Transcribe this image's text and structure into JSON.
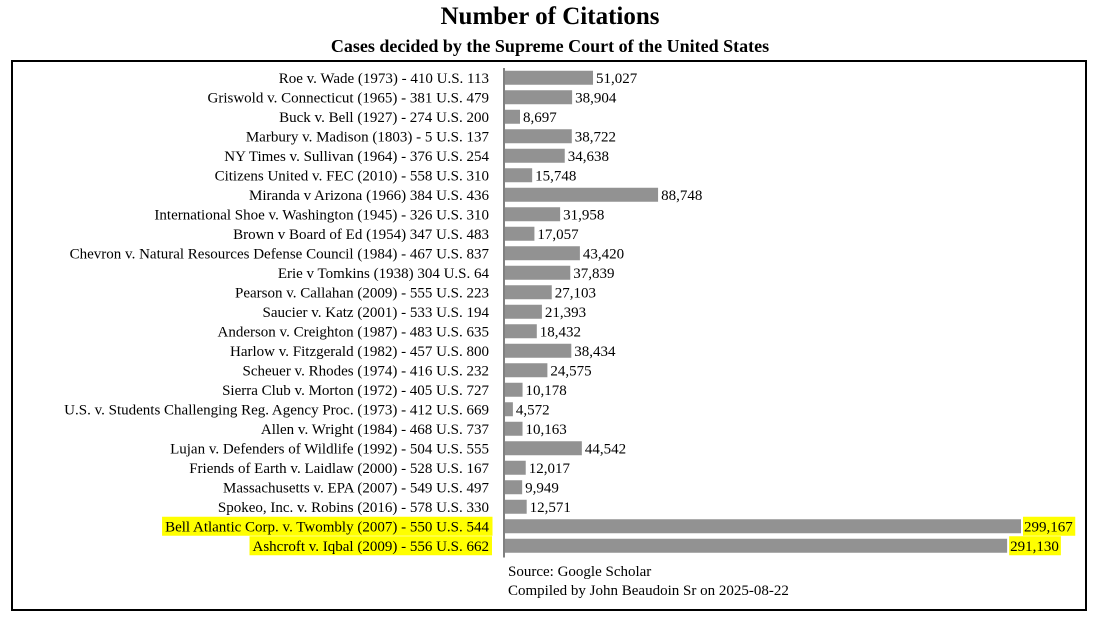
{
  "chart_data": {
    "type": "bar",
    "orientation": "horizontal",
    "title": "Number of Citations",
    "subtitle": "Cases decided by the Supreme Court of the United States",
    "categories": [
      "Roe v. Wade (1973) - 410 U.S. 113",
      "Griswold v. Connecticut (1965) - 381 U.S. 479",
      "Buck v. Bell (1927) - 274 U.S. 200",
      "Marbury v. Madison (1803) - 5 U.S. 137",
      "NY Times v. Sullivan (1964) - 376 U.S. 254",
      "Citizens United v. FEC (2010) - 558 U.S. 310",
      "Miranda v Arizona (1966) 384 U.S. 436",
      "International Shoe v. Washington (1945) - 326 U.S. 310",
      "Brown v Board of Ed (1954) 347 U.S. 483",
      "Chevron v. Natural Resources Defense Council (1984) - 467 U.S. 837",
      "Erie v Tomkins (1938) 304 U.S. 64",
      "Pearson v. Callahan (2009) - 555 U.S. 223",
      "Saucier v. Katz (2001) - 533 U.S. 194",
      "Anderson v. Creighton (1987) - 483 U.S. 635",
      "Harlow v. Fitzgerald (1982) - 457 U.S. 800",
      "Scheuer v. Rhodes (1974) - 416 U.S. 232",
      "Sierra Club v. Morton (1972) - 405 U.S. 727",
      "U.S. v. Students Challenging Reg. Agency Proc. (1973) - 412 U.S. 669",
      "Allen v. Wright (1984) - 468 U.S. 737",
      "Lujan v. Defenders of Wildlife (1992) - 504 U.S. 555",
      "Friends of Earth v. Laidlaw (2000) - 528 U.S. 167",
      "Massachusetts v. EPA (2007) - 549 U.S. 497",
      "Spokeo, Inc. v. Robins (2016) - 578 U.S. 330",
      "Bell Atlantic Corp. v. Twombly (2007) - 550 U.S. 544",
      "Ashcroft v. Iqbal (2009) - 556 U.S. 662"
    ],
    "values": [
      51027,
      38904,
      8697,
      38722,
      34638,
      15748,
      88748,
      31958,
      17057,
      43420,
      37839,
      27103,
      21393,
      18432,
      38434,
      24575,
      10178,
      4572,
      10163,
      44542,
      12017,
      9949,
      12571,
      299167,
      291130
    ],
    "value_labels": [
      "51,027",
      "38,904",
      "8,697",
      "38,722",
      "34,638",
      "15,748",
      "88,748",
      "31,958",
      "17,057",
      "43,420",
      "37,839",
      "27,103",
      "21,393",
      "18,432",
      "38,434",
      "24,575",
      "10,178",
      "4,572",
      "10,163",
      "44,542",
      "12,017",
      "9,949",
      "12,571",
      "299,167",
      "291,130"
    ],
    "highlighted": [
      false,
      false,
      false,
      false,
      false,
      false,
      false,
      false,
      false,
      false,
      false,
      false,
      false,
      false,
      false,
      false,
      false,
      false,
      false,
      false,
      false,
      false,
      false,
      true,
      true
    ],
    "xlim": [
      0,
      300000
    ],
    "grid": false,
    "bar_color": "#929292",
    "highlight_color": "#ffff00",
    "axis_color": "#000000"
  },
  "footer": {
    "source": "Source: Google Scholar",
    "compiled": "Compiled by John Beaudoin Sr on 2025-08-22"
  }
}
